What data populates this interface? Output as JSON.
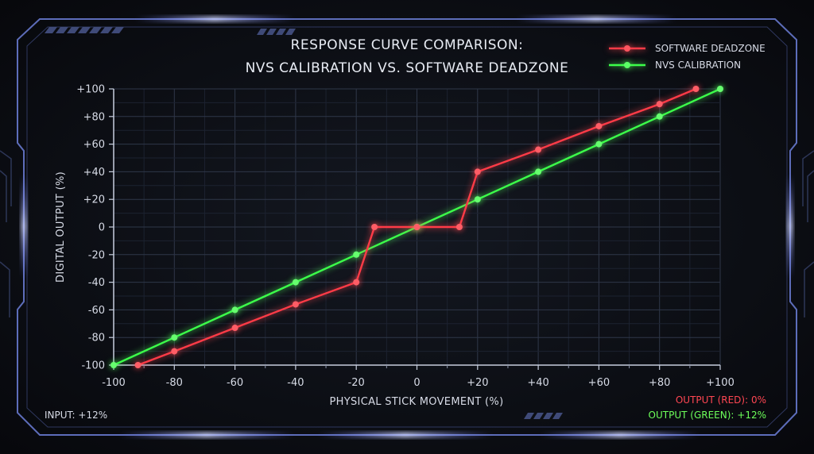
{
  "chart_data": {
    "type": "line",
    "title_lines": [
      "RESPONSE CURVE COMPARISON:",
      "NVS CALIBRATION VS. SOFTWARE DEADZONE"
    ],
    "xlabel": "PHYSICAL STICK MOVEMENT (%)",
    "ylabel": "DIGITAL OUTPUT (%)",
    "xlim": [
      -100,
      100
    ],
    "ylim": [
      -100,
      100
    ],
    "xticks": [
      -100,
      -80,
      -60,
      -40,
      -20,
      0,
      20,
      40,
      60,
      80,
      100
    ],
    "yticks": [
      -100,
      -80,
      -60,
      -40,
      -20,
      0,
      20,
      40,
      60,
      80,
      100
    ],
    "xtick_labels": [
      "-100",
      "-80",
      "-60",
      "-40",
      "-20",
      "0",
      "+20",
      "+40",
      "+60",
      "+80",
      "+100"
    ],
    "ytick_labels": [
      "-100",
      "-80",
      "-60",
      "-40",
      "-20",
      "0",
      "+20",
      "+40",
      "+60",
      "+80",
      "+100"
    ],
    "grid": true,
    "legend_position": "top-right",
    "series": [
      {
        "name": "SOFTWARE DEADZONE",
        "color": "#ff3b47",
        "x": [
          -92,
          -80,
          -60,
          -40,
          -20,
          -14,
          0,
          14,
          20,
          40,
          60,
          80,
          92
        ],
        "y": [
          -100,
          -90,
          -73,
          -56,
          -40,
          0,
          0,
          0,
          40,
          56,
          73,
          89,
          100
        ]
      },
      {
        "name": "NVS CALIBRATION",
        "color": "#3cff4a",
        "x": [
          -100,
          -80,
          -60,
          -40,
          -20,
          0,
          20,
          40,
          60,
          80,
          100
        ],
        "y": [
          -100,
          -80,
          -60,
          -40,
          -20,
          0,
          20,
          40,
          60,
          80,
          100
        ]
      }
    ]
  },
  "status": {
    "input": "INPUT: +12%",
    "output_red": "OUTPUT (RED): 0%",
    "output_green": "OUTPUT (GREEN): +12%"
  },
  "colors": {
    "red": "#ff4652",
    "green": "#6dff5a",
    "frame": "#8aa0ff",
    "grid": "#2c3344"
  }
}
